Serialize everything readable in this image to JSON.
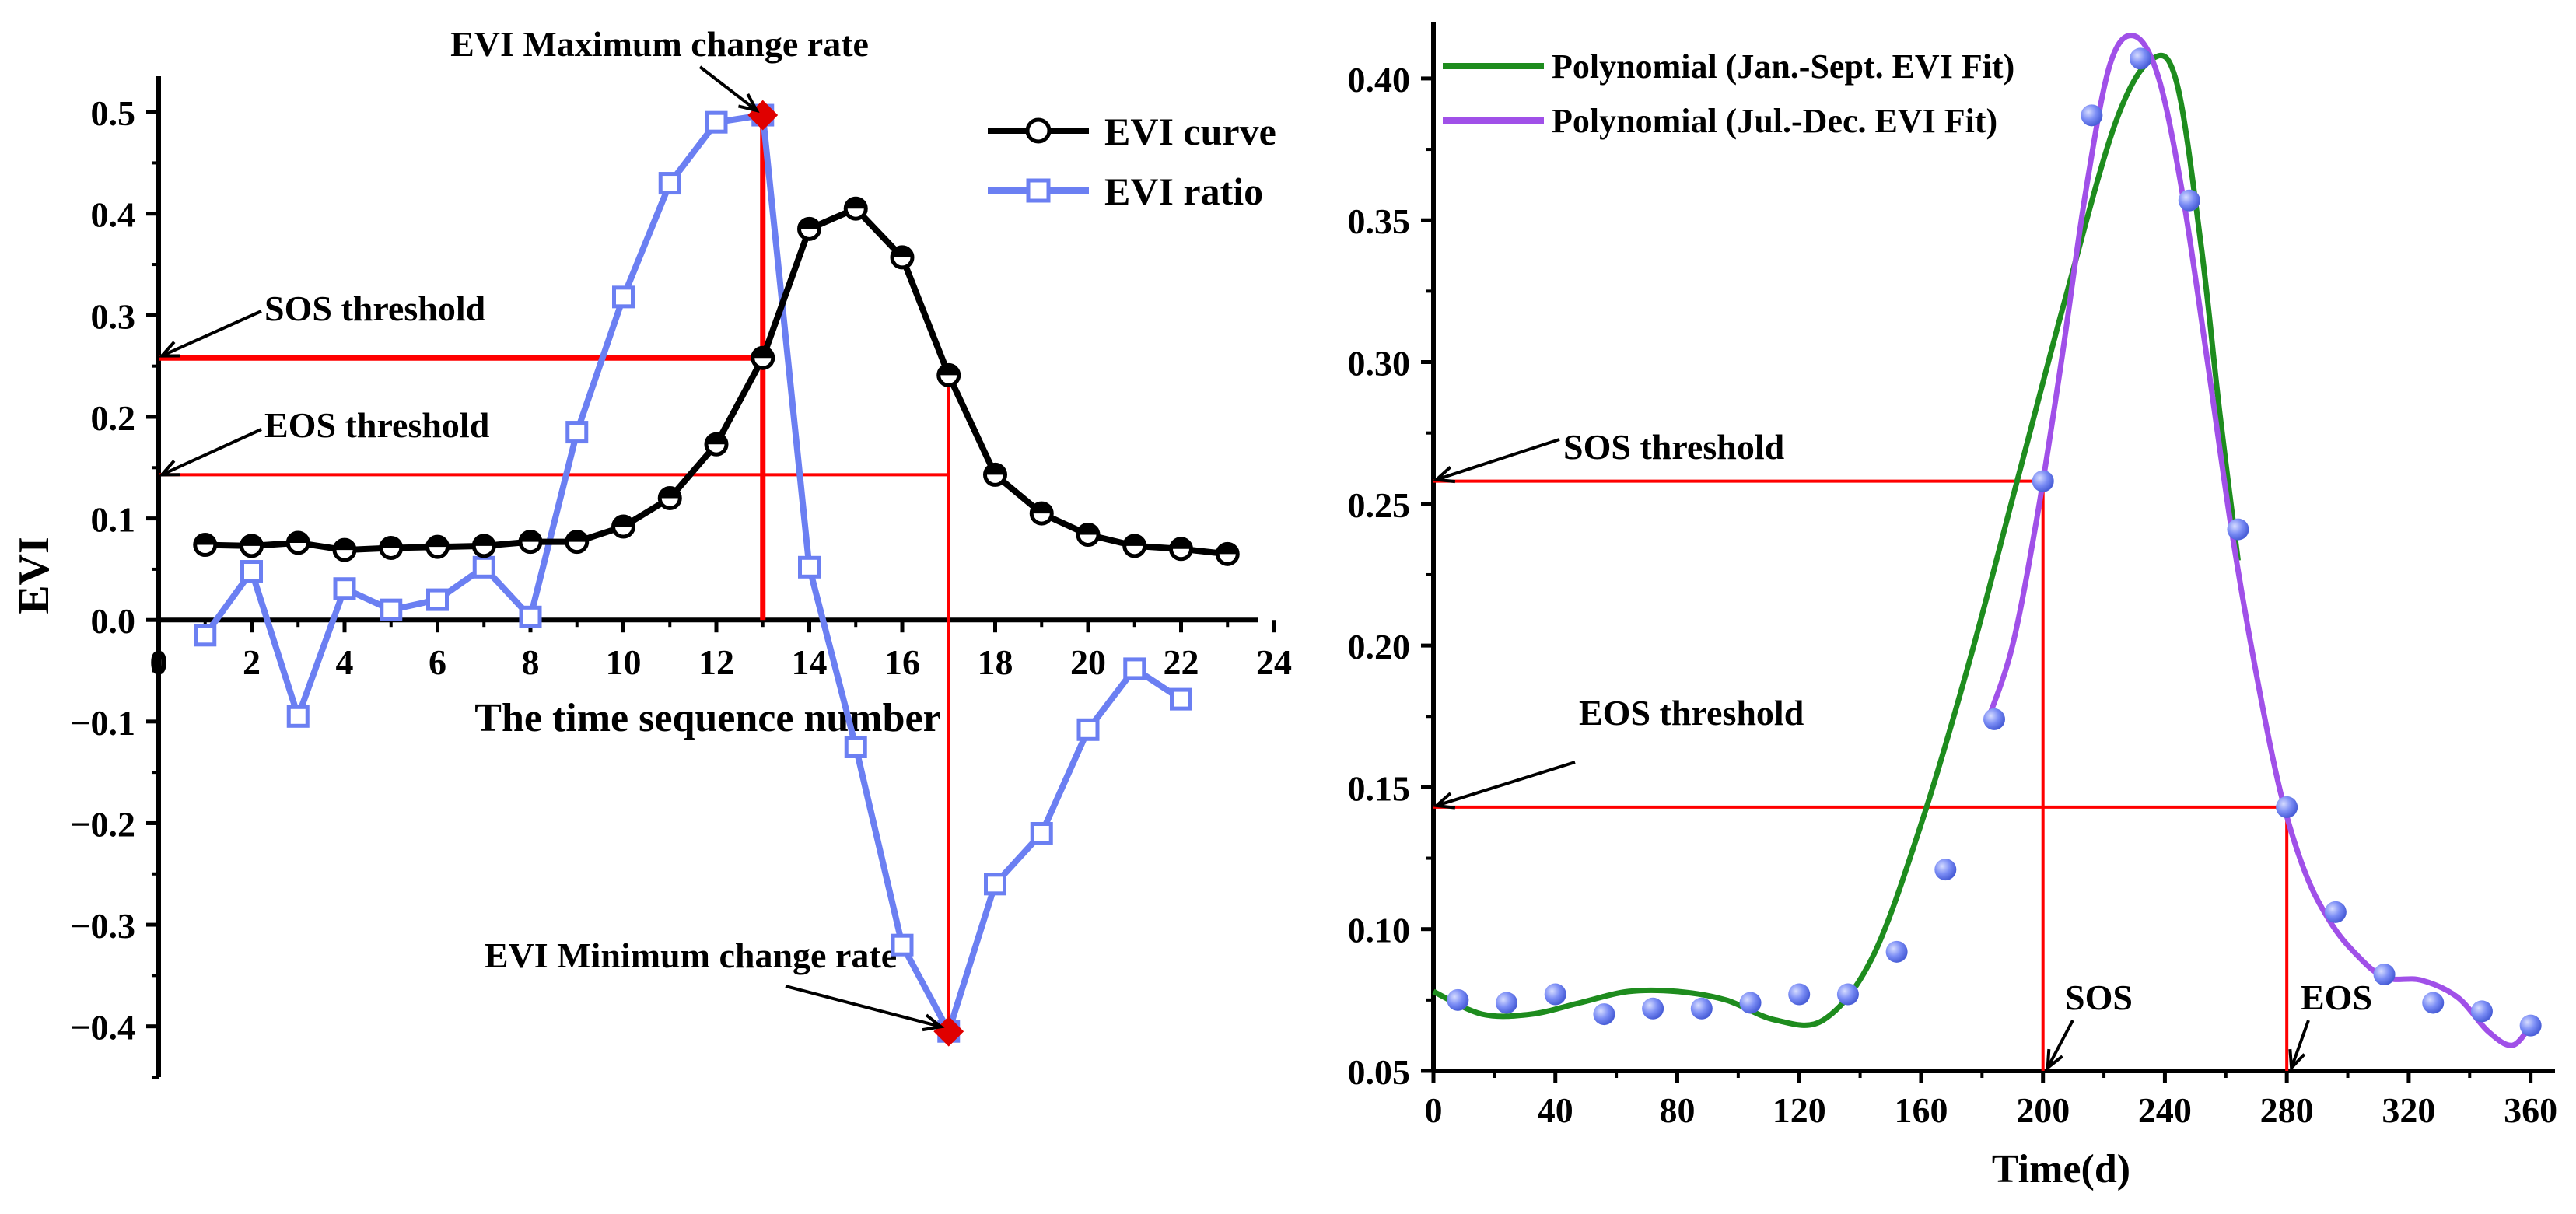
{
  "colors": {
    "black": "#000000",
    "blue": "#6b7ff2",
    "blue_marker_fill": "#ffffff",
    "red": "#ff0000",
    "red_marker": "#e00000",
    "green": "#1e8c1e",
    "purple": "#a050e8",
    "dot_blue": "#7b8df5"
  },
  "chart_data": [
    {
      "type": "line",
      "title": "",
      "xlabel": "The time sequence number",
      "ylabel": "EVI",
      "xlim": [
        0,
        24
      ],
      "ylim": [
        -0.45,
        0.52
      ],
      "x_ticks": [
        0,
        2,
        4,
        6,
        8,
        10,
        12,
        14,
        16,
        18,
        20,
        22,
        24
      ],
      "y_ticks": [
        -0.4,
        -0.3,
        -0.2,
        -0.1,
        0.0,
        0.1,
        0.2,
        0.3,
        0.4,
        0.5
      ],
      "x_tick_labels": [
        "0",
        "2",
        "4",
        "6",
        "8",
        "10",
        "12",
        "14",
        "16",
        "18",
        "20",
        "22",
        "24"
      ],
      "y_tick_labels": [
        "−0.4",
        "−0.3",
        "−0.2",
        "−0.1",
        "0.0",
        "0.1",
        "0.2",
        "0.3",
        "0.4",
        "0.5"
      ],
      "x": [
        1,
        2,
        3,
        4,
        5,
        6,
        7,
        8,
        9,
        10,
        11,
        12,
        13,
        14,
        15,
        16,
        17,
        18,
        19,
        20,
        21,
        22,
        23
      ],
      "series": [
        {
          "name": "EVI curve",
          "values": [
            0.074,
            0.073,
            0.076,
            0.069,
            0.071,
            0.072,
            0.073,
            0.077,
            0.077,
            0.092,
            0.12,
            0.173,
            0.258,
            0.385,
            0.405,
            0.357,
            0.241,
            0.143,
            0.105,
            0.084,
            0.073,
            0.07,
            0.065
          ]
        },
        {
          "name": "EVI ratio",
          "values": [
            -0.015,
            0.048,
            -0.095,
            0.031,
            0.01,
            0.02,
            0.052,
            0.003,
            0.185,
            0.318,
            0.43,
            0.49,
            0.497,
            0.052,
            -0.125,
            -0.32,
            -0.405,
            -0.26,
            -0.21,
            -0.108,
            -0.048,
            -0.078,
            null
          ]
        }
      ],
      "reference_lines": {
        "sos_threshold": 0.258,
        "eos_threshold": 0.143,
        "max_rate_x": 13,
        "max_rate_y": 0.497,
        "min_rate_x": 17,
        "min_rate_y": -0.405
      },
      "annotations": {
        "max_rate": "EVI Maximum change rate",
        "min_rate": "EVI Minimum change rate",
        "sos": "SOS threshold",
        "eos": "EOS threshold"
      },
      "legend": [
        "EVI curve",
        "EVI ratio"
      ],
      "legend_position": "top-right"
    },
    {
      "type": "scatter",
      "title": "",
      "xlabel": "Time(d)",
      "ylabel": "",
      "xlim": [
        0,
        368
      ],
      "ylim": [
        0.05,
        0.42
      ],
      "x_ticks": [
        0,
        40,
        80,
        120,
        160,
        200,
        240,
        280,
        320,
        360
      ],
      "y_ticks": [
        0.05,
        0.1,
        0.15,
        0.2,
        0.25,
        0.3,
        0.35,
        0.4
      ],
      "x_tick_labels": [
        "0",
        "40",
        "80",
        "120",
        "160",
        "200",
        "240",
        "280",
        "320",
        "360"
      ],
      "y_tick_labels": [
        "0.05",
        "0.10",
        "0.15",
        "0.20",
        "0.25",
        "0.30",
        "0.35",
        "0.40"
      ],
      "points": {
        "x": [
          8,
          24,
          40,
          56,
          72,
          88,
          104,
          120,
          136,
          152,
          168,
          184,
          200,
          216,
          232,
          248,
          264,
          280,
          296,
          312,
          328,
          344,
          360
        ],
        "y": [
          0.075,
          0.074,
          0.077,
          0.07,
          0.072,
          0.072,
          0.074,
          0.077,
          0.077,
          0.092,
          0.121,
          0.174,
          0.258,
          0.387,
          0.407,
          0.357,
          0.241,
          0.143,
          0.106,
          0.084,
          0.074,
          0.071,
          0.066
        ]
      },
      "series": [
        {
          "name": "Polynomial (Jan.-Sept. EVI Fit)",
          "x": [
            0,
            16,
            32,
            48,
            64,
            80,
            96,
            112,
            128,
            144,
            160,
            176,
            192,
            208,
            224,
            236,
            244,
            252,
            258,
            264
          ],
          "y": [
            0.078,
            0.07,
            0.07,
            0.074,
            0.078,
            0.078,
            0.075,
            0.068,
            0.068,
            0.09,
            0.137,
            0.195,
            0.26,
            0.325,
            0.385,
            0.407,
            0.398,
            0.34,
            0.282,
            0.23
          ]
        },
        {
          "name": "Polynomial (Jul.-Dec. EVI Fit)",
          "x": [
            182,
            190,
            198,
            206,
            214,
            222,
            230,
            238,
            246,
            254,
            262,
            270,
            278,
            286,
            294,
            302,
            312,
            324,
            336,
            346,
            354,
            360
          ],
          "y": [
            0.174,
            0.2,
            0.245,
            0.3,
            0.36,
            0.405,
            0.415,
            0.4,
            0.358,
            0.3,
            0.24,
            0.19,
            0.148,
            0.12,
            0.103,
            0.092,
            0.083,
            0.082,
            0.076,
            0.064,
            0.059,
            0.066
          ]
        }
      ],
      "reference_lines": {
        "sos_threshold": 0.258,
        "eos_threshold": 0.143,
        "sos_day": 200,
        "eos_day": 280
      },
      "annotations": {
        "sos_threshold": "SOS threshold",
        "eos_threshold": "EOS threshold",
        "sos": "SOS",
        "eos": "EOS"
      },
      "legend": [
        "Polynomial (Jan.-Sept. EVI Fit)",
        "Polynomial (Jul.-Dec. EVI Fit)"
      ],
      "legend_position": "top-left"
    }
  ]
}
